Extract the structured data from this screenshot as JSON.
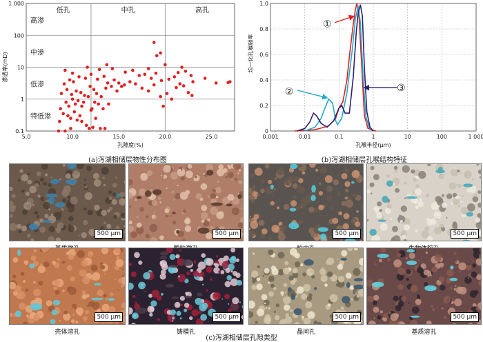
{
  "chart_data": [
    {
      "type": "scatter",
      "xlabel": "孔隙度(%)",
      "ylabel": "渗透率(mD)",
      "xlim": [
        5,
        27.5
      ],
      "ylim": [
        0.1,
        1000
      ],
      "yscale": "log",
      "xticks": [
        "5.0",
        "10.0",
        "15.0",
        "20.0",
        "25.0"
      ],
      "yticks": [
        "0.1",
        "1",
        "10",
        "100",
        "1 000"
      ],
      "zones_x": [
        "低孔",
        "中孔",
        "高孔"
      ],
      "zones_y": [
        "高渗",
        "中渗",
        "低渗",
        "特低渗"
      ],
      "color": "#e02020",
      "points": [
        [
          8.5,
          0.1
        ],
        [
          9.2,
          0.1
        ],
        [
          9.8,
          0.12
        ],
        [
          8.6,
          0.2
        ],
        [
          9.0,
          0.35
        ],
        [
          8.7,
          0.5
        ],
        [
          9.5,
          0.3
        ],
        [
          9.8,
          0.25
        ],
        [
          10.2,
          0.4
        ],
        [
          10.5,
          0.22
        ],
        [
          10.8,
          0.3
        ],
        [
          11.0,
          0.2
        ],
        [
          11.5,
          0.15
        ],
        [
          11.8,
          0.12
        ],
        [
          12.2,
          0.13
        ],
        [
          12.0,
          0.45
        ],
        [
          12.5,
          0.25
        ],
        [
          13.0,
          0.12
        ],
        [
          13.5,
          0.12
        ],
        [
          9.3,
          0.8
        ],
        [
          9.6,
          0.6
        ],
        [
          10.0,
          1.0
        ],
        [
          10.3,
          0.7
        ],
        [
          10.6,
          0.9
        ],
        [
          11.0,
          0.6
        ],
        [
          11.2,
          0.8
        ],
        [
          11.7,
          1.2
        ],
        [
          12.1,
          0.5
        ],
        [
          12.4,
          0.8
        ],
        [
          12.8,
          0.7
        ],
        [
          13.3,
          0.5
        ],
        [
          13.9,
          0.7
        ],
        [
          8.8,
          1.5
        ],
        [
          9.4,
          2.0
        ],
        [
          9.9,
          1.4
        ],
        [
          10.4,
          1.8
        ],
        [
          10.9,
          1.6
        ],
        [
          11.3,
          1.3
        ],
        [
          11.9,
          2.5
        ],
        [
          12.3,
          2.0
        ],
        [
          12.6,
          1.5
        ],
        [
          13.1,
          1.2
        ],
        [
          13.6,
          2.2
        ],
        [
          14.2,
          2.5
        ],
        [
          14.8,
          1.8
        ],
        [
          15.3,
          2.5
        ],
        [
          9.1,
          3.0
        ],
        [
          9.7,
          4.0
        ],
        [
          10.1,
          3.5
        ],
        [
          10.7,
          5.0
        ],
        [
          11.4,
          4.5
        ],
        [
          12.0,
          6.0
        ],
        [
          12.7,
          4.2
        ],
        [
          13.4,
          5.2
        ],
        [
          13.8,
          3.2
        ],
        [
          14.5,
          4.0
        ],
        [
          15.0,
          3.2
        ],
        [
          15.6,
          2.8
        ],
        [
          16.2,
          3.5
        ],
        [
          16.8,
          3.0
        ],
        [
          17.5,
          2.2
        ],
        [
          18.2,
          1.8
        ],
        [
          18.8,
          2.8
        ],
        [
          19.5,
          1.2
        ],
        [
          19.8,
          0.6
        ],
        [
          20.2,
          1.5
        ],
        [
          20.7,
          1.0
        ],
        [
          21.2,
          2.3
        ],
        [
          21.6,
          3.0
        ],
        [
          22.0,
          2.6
        ],
        [
          22.5,
          1.6
        ],
        [
          22.9,
          1.3
        ],
        [
          9.2,
          8.0
        ],
        [
          10.0,
          6.5
        ],
        [
          11.6,
          10.0
        ],
        [
          12.9,
          8.5
        ],
        [
          13.7,
          12.0
        ],
        [
          14.3,
          9.0
        ],
        [
          15.7,
          7.0
        ],
        [
          16.5,
          8.0
        ],
        [
          17.2,
          5.5
        ],
        [
          17.8,
          6.0
        ],
        [
          18.5,
          4.5
        ],
        [
          19.0,
          6.5
        ],
        [
          19.6,
          3.8
        ],
        [
          20.4,
          4.2
        ],
        [
          21.0,
          5.0
        ],
        [
          21.4,
          6.8
        ],
        [
          22.2,
          7.5
        ],
        [
          22.8,
          5.5
        ],
        [
          23.0,
          3.5
        ],
        [
          24.3,
          4.5
        ],
        [
          25.5,
          3.2
        ],
        [
          26.8,
          3.3
        ],
        [
          27.0,
          3.5
        ],
        [
          18.2,
          9.0
        ],
        [
          20.0,
          12.0
        ],
        [
          21.8,
          10.0
        ],
        [
          19.1,
          23.0
        ],
        [
          18.8,
          60.0
        ],
        [
          19.5,
          28.0
        ]
      ]
    },
    {
      "type": "line",
      "xlabel": "孔喉半径(μm)",
      "ylabel": "均一化孔喉频率",
      "xlim": [
        0.001,
        1000
      ],
      "xscale": "log",
      "ylim": [
        0,
        1.0
      ],
      "xticks": [
        "0.001",
        "0.01",
        "0.1",
        "1",
        "10",
        "100",
        "1 000"
      ],
      "yticks": [
        "0",
        "0.2",
        "0.4",
        "0.6",
        "0.8",
        "1.0"
      ],
      "annotations": [
        "①",
        "②",
        "③"
      ],
      "series": [
        {
          "color": "#e02020",
          "points": [
            [
              0.005,
              0
            ],
            [
              0.02,
              0.01
            ],
            [
              0.05,
              0.04
            ],
            [
              0.08,
              0.1
            ],
            [
              0.1,
              0.18
            ],
            [
              0.13,
              0.23
            ],
            [
              0.17,
              0.4
            ],
            [
              0.2,
              0.58
            ],
            [
              0.25,
              0.8
            ],
            [
              0.3,
              0.95
            ],
            [
              0.33,
              1.0
            ],
            [
              0.38,
              0.92
            ],
            [
              0.45,
              0.55
            ],
            [
              0.55,
              0.12
            ],
            [
              0.7,
              0.02
            ],
            [
              1.2,
              0
            ]
          ]
        },
        {
          "color": "#22a8c8",
          "points": [
            [
              0.01,
              0
            ],
            [
              0.02,
              0.03
            ],
            [
              0.03,
              0.1
            ],
            [
              0.04,
              0.19
            ],
            [
              0.05,
              0.25
            ],
            [
              0.065,
              0.22
            ],
            [
              0.08,
              0.08
            ],
            [
              0.09,
              0.05
            ],
            [
              0.12,
              0.1
            ],
            [
              0.17,
              0.3
            ],
            [
              0.24,
              0.62
            ],
            [
              0.3,
              0.88
            ],
            [
              0.36,
              0.98
            ],
            [
              0.42,
              0.85
            ],
            [
              0.5,
              0.45
            ],
            [
              0.6,
              0.12
            ],
            [
              0.75,
              0.03
            ],
            [
              1.0,
              0
            ]
          ]
        },
        {
          "color": "#2a2070",
          "points": [
            [
              0.006,
              0
            ],
            [
              0.01,
              0.02
            ],
            [
              0.014,
              0.07
            ],
            [
              0.018,
              0.14
            ],
            [
              0.022,
              0.12
            ],
            [
              0.03,
              0.06
            ],
            [
              0.045,
              0.03
            ],
            [
              0.07,
              0.08
            ],
            [
              0.1,
              0.18
            ],
            [
              0.12,
              0.2
            ],
            [
              0.15,
              0.14
            ],
            [
              0.2,
              0.14
            ],
            [
              0.26,
              0.42
            ],
            [
              0.32,
              0.78
            ],
            [
              0.36,
              0.92
            ],
            [
              0.42,
              0.99
            ],
            [
              0.48,
              0.9
            ],
            [
              0.55,
              0.5
            ],
            [
              0.65,
              0.15
            ],
            [
              0.8,
              0.03
            ],
            [
              1.0,
              0
            ]
          ]
        }
      ]
    }
  ],
  "captions": {
    "a": "(a)泻湖相储层物性分布图",
    "b": "(b)泻湖相储层孔喉结构特征",
    "c": "(c)泻湖相储层孔隙类型"
  },
  "photos": [
    {
      "label": "基质微孔",
      "scale": "500 μm"
    },
    {
      "label": "颗粒微孔",
      "scale": "500 μm"
    },
    {
      "label": "粒内孔",
      "scale": "500 μm"
    },
    {
      "label": "生物体腔孔",
      "scale": "500 μm"
    },
    {
      "label": "壳体溶孔",
      "scale": "500 μm"
    },
    {
      "label": "铸模孔",
      "scale": "500 μm"
    },
    {
      "label": "晶间孔",
      "scale": "500 μm"
    },
    {
      "label": "基质溶孔",
      "scale": "500 μm"
    }
  ]
}
